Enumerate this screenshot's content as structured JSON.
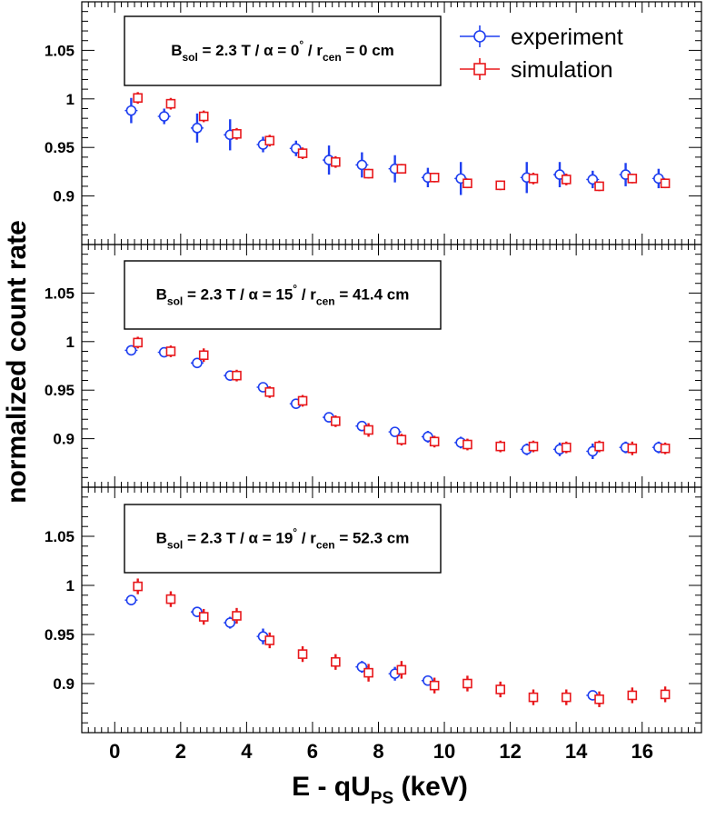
{
  "chart_data": [
    {
      "type": "scatter",
      "legend": {
        "placement": "top-right",
        "entries": [
          {
            "name": "experiment",
            "marker": "circle",
            "color": "#1f3ff0"
          },
          {
            "name": "simulation",
            "marker": "square",
            "color": "#e8181c"
          }
        ]
      },
      "annotation": {
        "parts": [
          "B",
          "sol",
          " = 2.3 T / α = 0",
          "°",
          " / r",
          "cen",
          " = 0 cm"
        ]
      },
      "yticks": [
        "1.05",
        "1",
        "0.95",
        "0.9"
      ],
      "series": [
        {
          "name": "experiment",
          "x": [
            0.5,
            1.5,
            2.5,
            3.5,
            4.5,
            5.5,
            6.5,
            7.5,
            8.5,
            9.5,
            10.5,
            12.5,
            13.5,
            14.5,
            15.5,
            16.5
          ],
          "y": [
            0.988,
            0.982,
            0.97,
            0.963,
            0.953,
            0.949,
            0.937,
            0.932,
            0.928,
            0.919,
            0.918,
            0.919,
            0.922,
            0.917,
            0.922,
            0.918
          ],
          "err": [
            0.013,
            0.008,
            0.015,
            0.016,
            0.008,
            0.008,
            0.015,
            0.013,
            0.014,
            0.01,
            0.017,
            0.016,
            0.013,
            0.009,
            0.012,
            0.01
          ]
        },
        {
          "name": "simulation",
          "x": [
            0.7,
            1.7,
            2.7,
            3.7,
            4.7,
            5.7,
            6.7,
            7.7,
            8.7,
            9.7,
            10.7,
            11.7,
            12.7,
            13.7,
            14.7,
            15.7,
            16.7
          ],
          "y": [
            1.001,
            0.995,
            0.982,
            0.964,
            0.957,
            0.944,
            0.935,
            0.923,
            0.928,
            0.919,
            0.913,
            0.911,
            0.918,
            0.917,
            0.91,
            0.918,
            0.913
          ],
          "err": [
            0.006,
            0.006,
            0.006,
            0.006,
            0.006,
            0.006,
            0.006,
            0.005,
            0.005,
            0.005,
            0.005,
            0.005,
            0.006,
            0.006,
            0.005,
            0.005,
            0.005
          ]
        }
      ]
    },
    {
      "type": "scatter",
      "annotation": {
        "parts": [
          "B",
          "sol",
          " = 2.3 T / α = 15",
          "°",
          " / r",
          "cen",
          " = 41.4 cm"
        ]
      },
      "yticks": [
        "1.05",
        "1",
        "0.95",
        "0.9"
      ],
      "series": [
        {
          "name": "experiment",
          "x": [
            0.5,
            1.5,
            2.5,
            3.5,
            4.5,
            5.5,
            6.5,
            7.5,
            8.5,
            9.5,
            10.5,
            12.5,
            13.5,
            14.5,
            15.5,
            16.5
          ],
          "y": [
            0.991,
            0.989,
            0.978,
            0.965,
            0.953,
            0.936,
            0.922,
            0.913,
            0.907,
            0.902,
            0.896,
            0.889,
            0.889,
            0.887,
            0.891,
            0.891
          ],
          "err": [
            0.005,
            0.003,
            0.005,
            0.004,
            0.004,
            0.005,
            0.005,
            0.004,
            0.004,
            0.006,
            0.006,
            0.006,
            0.007,
            0.008,
            0.006,
            0.006
          ]
        },
        {
          "name": "simulation",
          "x": [
            0.7,
            1.7,
            2.7,
            3.7,
            4.7,
            5.7,
            6.7,
            7.7,
            8.7,
            9.7,
            10.7,
            11.7,
            12.7,
            13.7,
            14.7,
            15.7,
            16.7
          ],
          "y": [
            0.999,
            0.99,
            0.986,
            0.965,
            0.948,
            0.939,
            0.918,
            0.909,
            0.899,
            0.897,
            0.894,
            0.892,
            0.892,
            0.891,
            0.892,
            0.89,
            0.89
          ],
          "err": [
            0.006,
            0.006,
            0.007,
            0.006,
            0.006,
            0.006,
            0.006,
            0.007,
            0.006,
            0.006,
            0.006,
            0.006,
            0.006,
            0.006,
            0.006,
            0.007,
            0.006
          ]
        }
      ]
    },
    {
      "type": "scatter",
      "annotation": {
        "parts": [
          "B",
          "sol",
          " = 2.3 T / α = 19",
          "°",
          " / r",
          "cen",
          " = 52.3 cm"
        ]
      },
      "yticks": [
        "1.05",
        "1",
        "0.95",
        "0.9"
      ],
      "series": [
        {
          "name": "experiment",
          "x": [
            0.5,
            2.5,
            3.5,
            4.5,
            7.5,
            8.5,
            9.5,
            14.5
          ],
          "y": [
            0.985,
            0.973,
            0.962,
            0.948,
            0.917,
            0.91,
            0.903,
            0.888
          ],
          "err": [
            0.005,
            0.005,
            0.006,
            0.008,
            0.006,
            0.007,
            0.005,
            0.005
          ]
        },
        {
          "name": "simulation",
          "x": [
            0.7,
            1.7,
            2.7,
            3.7,
            4.7,
            5.7,
            6.7,
            7.7,
            8.7,
            9.7,
            10.7,
            11.7,
            12.7,
            13.7,
            14.7,
            15.7,
            16.7
          ],
          "y": [
            0.999,
            0.986,
            0.968,
            0.969,
            0.944,
            0.93,
            0.922,
            0.911,
            0.914,
            0.898,
            0.9,
            0.894,
            0.886,
            0.886,
            0.884,
            0.888,
            0.889
          ],
          "err": [
            0.008,
            0.008,
            0.008,
            0.008,
            0.008,
            0.008,
            0.008,
            0.009,
            0.009,
            0.008,
            0.008,
            0.008,
            0.008,
            0.008,
            0.008,
            0.008,
            0.008
          ]
        }
      ]
    }
  ],
  "shared": {
    "xlim": [
      -1.0,
      17.8
    ],
    "ylim": [
      0.85,
      1.1
    ],
    "xticks": [
      "0",
      "2",
      "4",
      "6",
      "8",
      "10",
      "12",
      "14",
      "16"
    ],
    "xlabel_parts": [
      "E  - qU",
      "PS",
      " (keV)"
    ],
    "ylabel": "normalized count rate"
  }
}
